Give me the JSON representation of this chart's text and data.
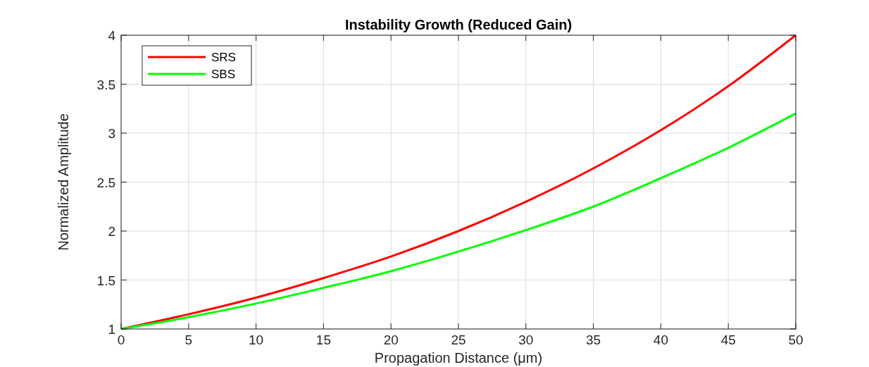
{
  "chart_data": {
    "type": "line",
    "title": "Instability Growth (Reduced Gain)",
    "xlabel": "Propagation Distance (μm)",
    "ylabel": "Normalized Amplitude",
    "x": [
      0,
      5,
      10,
      15,
      20,
      25,
      30,
      35,
      40,
      45,
      50
    ],
    "series": [
      {
        "name": "SRS",
        "color": "#ff0000",
        "values": [
          1,
          1.15,
          1.32,
          1.52,
          1.74,
          2.0,
          2.3,
          2.64,
          3.03,
          3.48,
          4.0
        ]
      },
      {
        "name": "SBS",
        "color": "#00ff00",
        "values": [
          1,
          1.12,
          1.26,
          1.42,
          1.59,
          1.79,
          2.01,
          2.25,
          2.54,
          2.85,
          3.2
        ]
      }
    ],
    "xlim": [
      0,
      50
    ],
    "xticks": [
      0,
      5,
      10,
      15,
      20,
      25,
      30,
      35,
      40,
      45,
      50
    ],
    "ylim": [
      1,
      4
    ],
    "yticks": [
      1,
      1.5,
      2,
      2.5,
      3,
      3.5,
      4
    ],
    "grid": true,
    "legend": "top left",
    "marker": "none",
    "line_style": "solid"
  }
}
